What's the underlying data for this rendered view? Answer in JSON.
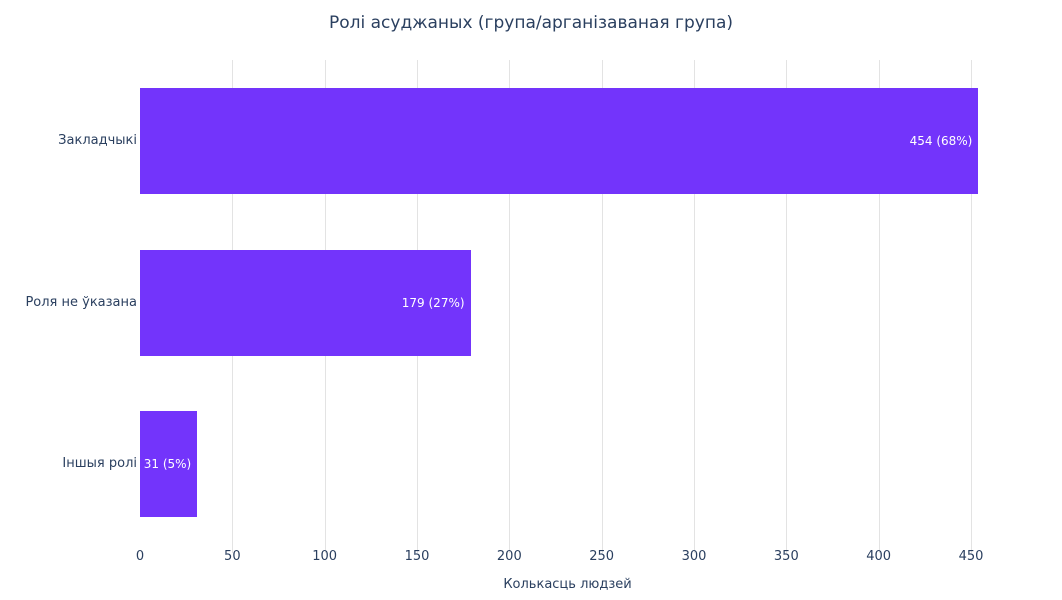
{
  "chart_data": {
    "type": "bar",
    "orientation": "horizontal",
    "title": "Ролі асуджаных (група/арганізаваная група)",
    "xlabel": "Колькасць людзей",
    "ylabel": "",
    "categories": [
      "Закладчыкі",
      "Роля не ўказана",
      "Іншыя ролі"
    ],
    "values": [
      454,
      179,
      31
    ],
    "bar_labels": [
      "454 (68%)",
      "179 (27%)",
      "31 (5%)"
    ],
    "x_ticks": [
      0,
      50,
      100,
      150,
      200,
      250,
      300,
      350,
      400,
      450
    ],
    "xlim": [
      0,
      463
    ],
    "grid": true,
    "legend": false,
    "bar_color": "#7334fb",
    "bar_label_color": "#ffffff",
    "text_color": "#2a3f5f",
    "grid_color": "#e3e3e3",
    "background": "#ffffff"
  }
}
